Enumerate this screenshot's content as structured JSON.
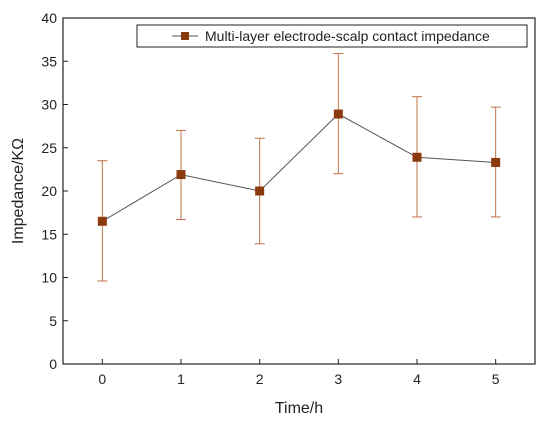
{
  "chart_data": {
    "type": "line",
    "title": "",
    "xlabel": "Time/h",
    "ylabel": "Impedance/KΩ",
    "x": [
      0,
      1,
      2,
      3,
      4,
      5
    ],
    "xticks": [
      "0",
      "1",
      "2",
      "3",
      "4",
      "5"
    ],
    "xlim": [
      -0.5,
      5.5
    ],
    "ylim": [
      0,
      40
    ],
    "yticks": [
      "0",
      "5",
      "10",
      "15",
      "20",
      "25",
      "30",
      "35",
      "40"
    ],
    "grid": false,
    "legend_position": "top-right",
    "series": [
      {
        "name": "Multi-layer electrode-scalp contact impedance",
        "values": [
          16.5,
          21.9,
          20.0,
          28.9,
          23.9,
          23.3
        ],
        "error_low": [
          9.6,
          16.7,
          13.9,
          22.0,
          17.0,
          17.0
        ],
        "error_high": [
          23.5,
          27.0,
          26.1,
          35.9,
          30.9,
          29.7
        ],
        "line_color": "#555555",
        "marker_color": "#8B3A0E",
        "errorbar_color": "#C0704A"
      }
    ]
  }
}
